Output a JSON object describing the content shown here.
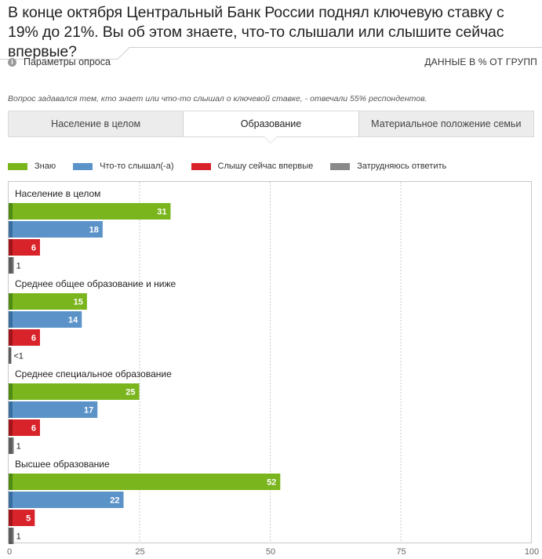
{
  "header": {
    "title": "В конце октября Центральный Банк России поднял ключевую ставку с 19% до 21%. Вы об этом знаете, что-то слышали или слышите сейчас впервые?",
    "params_label": "Параметры опроса",
    "info_icon": "info-icon",
    "data_units_label": "ДАННЫЕ В % ОТ ГРУПП"
  },
  "note": "Вопрос задавался тем, кто знает или что-то слышал о ключевой ставке, - отвечали 55% респондентов.",
  "tabs": [
    {
      "label": "Население в целом",
      "active": false
    },
    {
      "label": "Образование",
      "active": true
    },
    {
      "label": "Материальное положение семьи",
      "active": false
    }
  ],
  "colors": {
    "series": [
      "#7ab51d",
      "#5b93c9",
      "#d8232a",
      "#8a8a8a"
    ],
    "series_dark": [
      "#4f8a12",
      "#3a6ea0",
      "#a11419",
      "#5c5c5c"
    ],
    "grid": "#c8c8c8",
    "axis": "#666666"
  },
  "chart_data": {
    "type": "bar",
    "orientation": "horizontal",
    "xlim": [
      0,
      100
    ],
    "xticks": [
      0,
      25,
      50,
      75,
      100
    ],
    "grid": true,
    "legend_position": "top-left",
    "series": [
      {
        "name": "Знаю",
        "values": [
          31,
          15,
          25,
          52
        ],
        "labels": [
          "31",
          "15",
          "25",
          "52"
        ]
      },
      {
        "name": "Что-то слышал(-а)",
        "values": [
          18,
          14,
          17,
          22
        ],
        "labels": [
          "18",
          "14",
          "17",
          "22"
        ]
      },
      {
        "name": "Слышу сейчас впервые",
        "values": [
          6,
          6,
          6,
          5
        ],
        "labels": [
          "6",
          "6",
          "6",
          "5"
        ]
      },
      {
        "name": "Затрудняюсь ответить",
        "values": [
          1,
          0.5,
          1,
          1
        ],
        "labels": [
          "1",
          "<1",
          "1",
          "1"
        ]
      }
    ],
    "categories": [
      "Население в целом",
      "Среднее общее образование и ниже",
      "Среднее специальное образование",
      "Высшее образование"
    ]
  }
}
